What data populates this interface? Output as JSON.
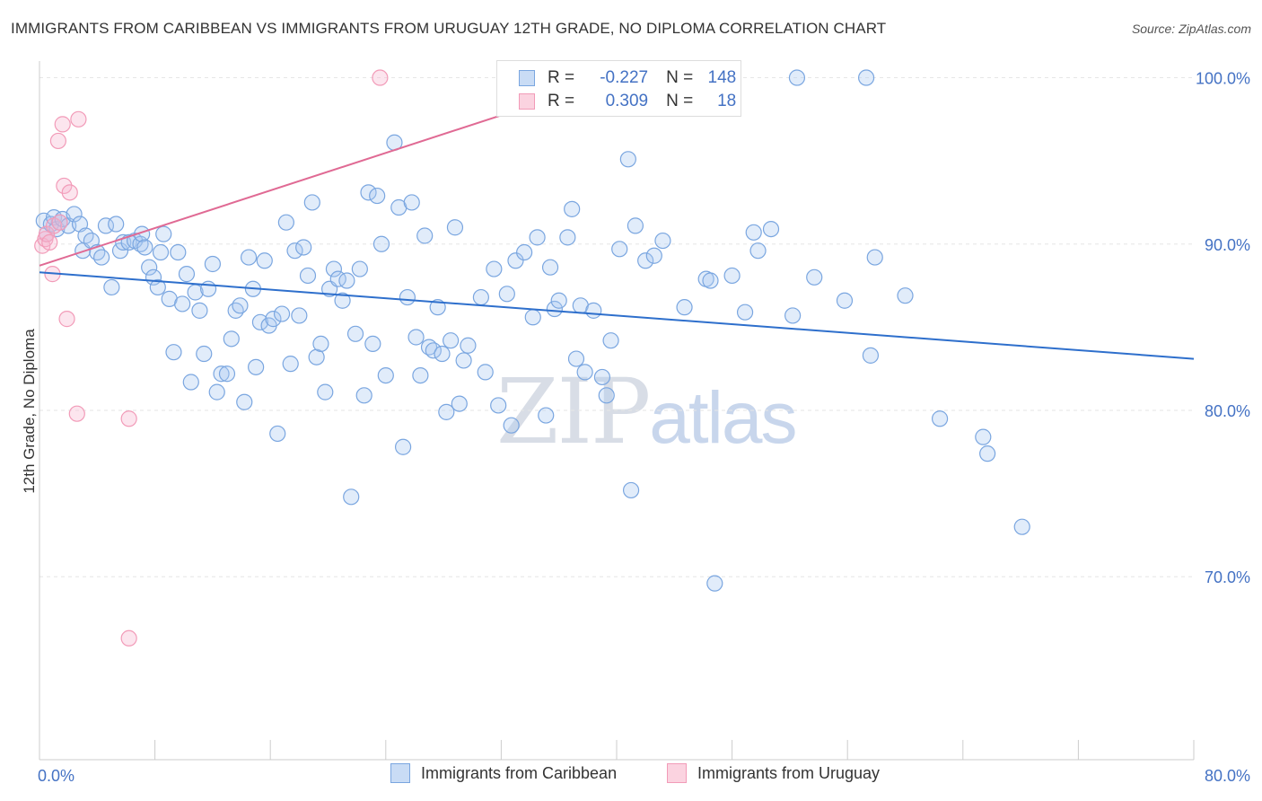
{
  "title": "IMMIGRANTS FROM CARIBBEAN VS IMMIGRANTS FROM URUGUAY 12TH GRADE, NO DIPLOMA CORRELATION CHART",
  "source": "Source: ZipAtlas.com",
  "watermark": {
    "zip": "ZIP",
    "atlas": "atlas"
  },
  "legend_top": {
    "rows": [
      {
        "r_label": "R =",
        "r_value": "-0.227",
        "n_label": "N =",
        "n_value": "148",
        "color": "#7aa6e0"
      },
      {
        "r_label": "R =",
        "r_value": "0.309",
        "n_label": "N =",
        "n_value": "18",
        "color": "#f29bb8"
      }
    ]
  },
  "colors": {
    "caribbean": "#7aa6e0",
    "uruguay": "#f29bb8",
    "caribbean_line": "#2e6fcc",
    "uruguay_line": "#e06a94",
    "tick": "#4472c4",
    "grid": "#e6e6e6"
  },
  "chart_data": {
    "type": "scatter",
    "title": "IMMIGRANTS FROM CARIBBEAN VS IMMIGRANTS FROM URUGUAY 12TH GRADE, NO DIPLOMA CORRELATION CHART",
    "xlabel": "",
    "ylabel": "12th Grade, No Diploma",
    "xlim": [
      0,
      80
    ],
    "ylim": [
      59,
      101
    ],
    "x_ticks_labeled": [
      "0.0%",
      "80.0%"
    ],
    "y_ticks": [
      70,
      80,
      90,
      100
    ],
    "y_tick_labels": [
      "70.0%",
      "80.0%",
      "90.0%",
      "100.0%"
    ],
    "grid": true,
    "legend_placement": "bottom",
    "series": [
      {
        "name": "Immigrants from Caribbean",
        "r": -0.227,
        "n": 148,
        "trend": {
          "x": [
            0,
            80
          ],
          "y": [
            88.3,
            83.1
          ]
        },
        "points": [
          [
            0.3,
            91.4
          ],
          [
            0.5,
            90.6
          ],
          [
            0.8,
            91.2
          ],
          [
            1.0,
            91.6
          ],
          [
            1.2,
            90.9
          ],
          [
            1.4,
            91.3
          ],
          [
            1.6,
            91.5
          ],
          [
            2.0,
            91.1
          ],
          [
            2.4,
            91.8
          ],
          [
            2.8,
            91.2
          ],
          [
            3.0,
            89.6
          ],
          [
            3.2,
            90.5
          ],
          [
            3.6,
            90.2
          ],
          [
            4.0,
            89.5
          ],
          [
            4.3,
            89.2
          ],
          [
            4.6,
            91.1
          ],
          [
            5.0,
            87.4
          ],
          [
            5.3,
            91.2
          ],
          [
            5.6,
            89.6
          ],
          [
            5.8,
            90.1
          ],
          [
            6.2,
            90.1
          ],
          [
            6.6,
            90.2
          ],
          [
            7.0,
            90.0
          ],
          [
            7.1,
            90.6
          ],
          [
            7.3,
            89.8
          ],
          [
            7.6,
            88.6
          ],
          [
            7.9,
            88.0
          ],
          [
            8.2,
            87.4
          ],
          [
            8.4,
            89.5
          ],
          [
            8.6,
            90.6
          ],
          [
            9.0,
            86.7
          ],
          [
            9.3,
            83.5
          ],
          [
            9.6,
            89.5
          ],
          [
            9.9,
            86.4
          ],
          [
            10.2,
            88.2
          ],
          [
            10.5,
            81.7
          ],
          [
            10.8,
            87.1
          ],
          [
            11.1,
            86.0
          ],
          [
            11.4,
            83.4
          ],
          [
            11.7,
            87.3
          ],
          [
            12.0,
            88.8
          ],
          [
            12.3,
            81.1
          ],
          [
            12.6,
            82.2
          ],
          [
            13.0,
            82.2
          ],
          [
            13.3,
            84.3
          ],
          [
            13.6,
            86.0
          ],
          [
            13.9,
            86.3
          ],
          [
            14.2,
            80.5
          ],
          [
            14.5,
            89.2
          ],
          [
            14.8,
            87.3
          ],
          [
            15.0,
            82.6
          ],
          [
            15.3,
            85.3
          ],
          [
            15.6,
            89.0
          ],
          [
            15.9,
            85.1
          ],
          [
            16.2,
            85.5
          ],
          [
            16.5,
            78.6
          ],
          [
            16.8,
            85.8
          ],
          [
            17.1,
            91.3
          ],
          [
            17.4,
            82.8
          ],
          [
            17.7,
            89.6
          ],
          [
            18.0,
            85.7
          ],
          [
            18.3,
            89.8
          ],
          [
            18.6,
            88.1
          ],
          [
            18.9,
            92.5
          ],
          [
            19.2,
            83.2
          ],
          [
            19.5,
            84.0
          ],
          [
            19.8,
            81.1
          ],
          [
            20.1,
            87.3
          ],
          [
            20.4,
            88.5
          ],
          [
            20.7,
            87.9
          ],
          [
            21.0,
            86.6
          ],
          [
            21.3,
            87.8
          ],
          [
            21.6,
            74.8
          ],
          [
            21.9,
            84.6
          ],
          [
            22.2,
            88.5
          ],
          [
            22.5,
            80.9
          ],
          [
            22.8,
            93.1
          ],
          [
            23.1,
            84.0
          ],
          [
            23.4,
            92.9
          ],
          [
            23.7,
            90.0
          ],
          [
            24.0,
            82.1
          ],
          [
            24.6,
            96.1
          ],
          [
            24.9,
            92.2
          ],
          [
            25.2,
            77.8
          ],
          [
            25.5,
            86.8
          ],
          [
            25.8,
            92.5
          ],
          [
            26.1,
            84.4
          ],
          [
            26.4,
            82.1
          ],
          [
            26.7,
            90.5
          ],
          [
            27.0,
            83.8
          ],
          [
            27.3,
            83.6
          ],
          [
            27.6,
            86.2
          ],
          [
            27.9,
            83.4
          ],
          [
            28.2,
            79.9
          ],
          [
            28.5,
            84.2
          ],
          [
            28.8,
            91.0
          ],
          [
            29.1,
            80.4
          ],
          [
            29.4,
            83.0
          ],
          [
            29.7,
            83.9
          ],
          [
            30.6,
            86.8
          ],
          [
            30.9,
            82.3
          ],
          [
            31.5,
            88.5
          ],
          [
            31.8,
            80.3
          ],
          [
            32.4,
            87.0
          ],
          [
            32.7,
            79.1
          ],
          [
            33.0,
            89.0
          ],
          [
            33.6,
            89.5
          ],
          [
            34.2,
            85.6
          ],
          [
            34.5,
            90.4
          ],
          [
            35.1,
            79.7
          ],
          [
            35.4,
            88.6
          ],
          [
            35.7,
            86.1
          ],
          [
            36.0,
            86.6
          ],
          [
            36.6,
            90.4
          ],
          [
            36.9,
            92.1
          ],
          [
            37.2,
            83.1
          ],
          [
            37.5,
            86.3
          ],
          [
            37.8,
            82.3
          ],
          [
            38.4,
            86.0
          ],
          [
            39.0,
            82.0
          ],
          [
            39.3,
            80.9
          ],
          [
            39.6,
            84.2
          ],
          [
            40.2,
            89.7
          ],
          [
            40.8,
            95.1
          ],
          [
            41.0,
            75.2
          ],
          [
            41.3,
            91.1
          ],
          [
            42.0,
            89.0
          ],
          [
            42.6,
            89.3
          ],
          [
            43.2,
            90.2
          ],
          [
            44.7,
            86.2
          ],
          [
            46.2,
            87.9
          ],
          [
            46.5,
            87.8
          ],
          [
            46.8,
            69.6
          ],
          [
            48.0,
            88.1
          ],
          [
            48.9,
            85.9
          ],
          [
            49.5,
            90.7
          ],
          [
            49.8,
            89.6
          ],
          [
            50.7,
            90.9
          ],
          [
            52.2,
            85.7
          ],
          [
            52.5,
            100.0
          ],
          [
            53.7,
            88.0
          ],
          [
            55.8,
            86.6
          ],
          [
            57.3,
            100.0
          ],
          [
            57.6,
            83.3
          ],
          [
            57.9,
            89.2
          ],
          [
            60.0,
            86.9
          ],
          [
            62.4,
            79.5
          ],
          [
            65.4,
            78.4
          ],
          [
            65.7,
            77.4
          ],
          [
            68.1,
            73.0
          ]
        ]
      },
      {
        "name": "Immigrants from Uruguay",
        "r": 0.309,
        "n": 18,
        "trend": {
          "x": [
            0,
            40
          ],
          "y": [
            88.7,
            100.0
          ]
        },
        "points": [
          [
            0.2,
            89.9
          ],
          [
            0.4,
            90.3
          ],
          [
            0.5,
            90.6
          ],
          [
            0.7,
            90.1
          ],
          [
            0.9,
            88.2
          ],
          [
            1.0,
            91.1
          ],
          [
            1.3,
            96.2
          ],
          [
            1.6,
            97.2
          ],
          [
            1.7,
            93.5
          ],
          [
            1.9,
            85.5
          ],
          [
            2.1,
            93.1
          ],
          [
            2.6,
            79.8
          ],
          [
            2.7,
            97.5
          ],
          [
            6.2,
            79.5
          ],
          [
            6.2,
            66.3
          ],
          [
            23.6,
            100.0
          ],
          [
            39.5,
            100.0
          ],
          [
            1.4,
            91.3
          ]
        ]
      }
    ]
  },
  "legend_bottom": [
    {
      "label": "Immigrants from Caribbean",
      "color": "#7aa6e0"
    },
    {
      "label": "Immigrants from Uruguay",
      "color": "#f29bb8"
    }
  ]
}
